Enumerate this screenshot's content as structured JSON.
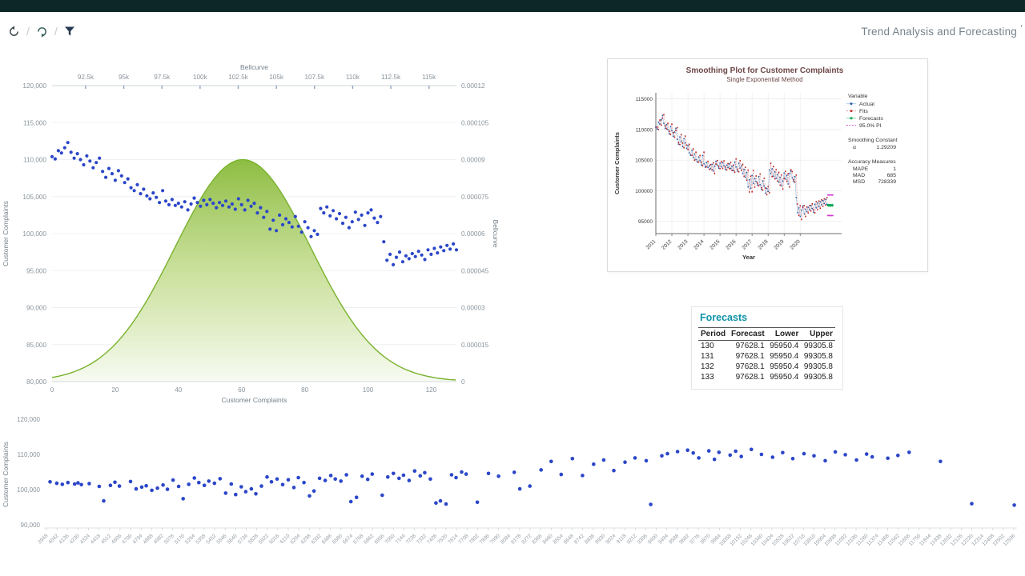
{
  "colors": {
    "topbar": "#0d2628",
    "scatter_point": "#2b46c8",
    "bellcurve_stroke": "#79b22e",
    "forecasts_title": "#0d93a6",
    "smoothing_title": "#6e4747",
    "actual_line": "#a6c8e8",
    "actual_marker": "#2e60a8",
    "fits_line": "#d98c8c",
    "fits_marker": "#bf1f1f",
    "forecast_marker": "#00a651",
    "pi_marker": "#cf3ccf"
  },
  "toolbar": {
    "separator": "/",
    "title": "Trend Analysis and Forecasting",
    "corner_mark": "’",
    "icons": [
      "undo-icon",
      "redo-icon",
      "filter-icon"
    ]
  },
  "forecasts_table": {
    "title": "Forecasts",
    "columns": [
      "Period",
      "Forecast",
      "Lower",
      "Upper"
    ],
    "rows": [
      [
        "130",
        "97628.1",
        "95950.4",
        "99305.8"
      ],
      [
        "131",
        "97628.1",
        "95950.4",
        "99305.8"
      ],
      [
        "132",
        "97628.1",
        "95950.4",
        "99305.8"
      ],
      [
        "133",
        "97628.1",
        "95950.4",
        "99305.8"
      ]
    ]
  },
  "chart_data": [
    {
      "id": "bellcurve-scatter",
      "type": "scatter",
      "title": "",
      "x_axis": {
        "label": "Customer Complaints",
        "values": [
          0,
          20,
          40,
          60,
          80,
          100,
          120
        ],
        "labels": [
          "0",
          "20",
          "40",
          "60",
          "80",
          "100",
          "120"
        ],
        "range": [
          0,
          128
        ]
      },
      "y_axis": {
        "label": "Customer Complaints",
        "values": [
          80000,
          85000,
          90000,
          95000,
          100000,
          105000,
          110000,
          115000,
          120000
        ],
        "labels": [
          "80,000",
          "85,000",
          "90,000",
          "95,000",
          "100,000",
          "105,000",
          "110,000",
          "115,000",
          "120,000"
        ],
        "range": [
          80000,
          120000
        ]
      },
      "top_axis": {
        "label": "Bellcurve",
        "values": [
          92500,
          95000,
          97500,
          100000,
          102500,
          105000,
          107500,
          110000,
          112500,
          115000
        ],
        "labels": [
          "92.5k",
          "95k",
          "97.5k",
          "100k",
          "102.5k",
          "105k",
          "107.5k",
          "110k",
          "112.5k",
          "115k"
        ],
        "range": [
          90300,
          116800
        ]
      },
      "right_axis": {
        "label": "Bellcurve",
        "values": [
          0,
          1.5e-05,
          3e-05,
          4.5e-05,
          6e-05,
          7.5e-05,
          9e-05,
          0.000105,
          0.00012
        ],
        "labels": [
          "0",
          "0.000015",
          "0.00003",
          "0.000045",
          "0.00006",
          "0.000075",
          "0.00009",
          "0.000105",
          "0.00012"
        ],
        "range": [
          0,
          0.00012
        ]
      },
      "bellcurve": {
        "mean": 102800,
        "sd": 4430,
        "peak": 9e-05
      },
      "point_color": "#2b46c8",
      "curve_color": "#79b22e",
      "grid": "horizontal",
      "values": [
        110400,
        110100,
        111200,
        110900,
        111600,
        112300,
        111000,
        110200,
        110800,
        110000,
        109300,
        110500,
        109800,
        108900,
        109600,
        110200,
        108400,
        107600,
        108800,
        108100,
        107200,
        108500,
        107800,
        106900,
        107400,
        106200,
        105800,
        106600,
        105400,
        106000,
        105100,
        104700,
        105500,
        104900,
        104200,
        105800,
        104400,
        103900,
        104600,
        103800,
        104100,
        103600,
        104300,
        103200,
        104000,
        104800,
        104200,
        103700,
        104500,
        103900,
        104600,
        104100,
        103500,
        104200,
        103800,
        104400,
        103600,
        104000,
        103300,
        104700,
        103900,
        103200,
        104500,
        103700,
        104100,
        102800,
        103500,
        102200,
        103000,
        100600,
        101800,
        100400,
        102500,
        101200,
        102000,
        101500,
        100900,
        102300,
        101000,
        100200,
        101600,
        100800,
        99600,
        100400,
        99900,
        103400,
        102800,
        103600,
        102400,
        103100,
        102000,
        102700,
        101400,
        102200,
        100800,
        101600,
        102900,
        101900,
        102500,
        101100,
        102800,
        103200,
        102100,
        101500,
        102300,
        98900,
        96400,
        97200,
        95800,
        96800,
        97500,
        96200,
        97000,
        96600,
        97300,
        96900,
        97600,
        97100,
        96500,
        97800,
        97200,
        98000,
        97400,
        98200,
        97700,
        98400,
        97900,
        98600,
        97800
      ]
    },
    {
      "id": "smoothing-plot",
      "type": "line",
      "title": "Smoothing Plot for Customer Complaints",
      "subtitle": "Single Exponential Method",
      "x_axis": {
        "label": "Year",
        "ticks": [
          "2011",
          "2012",
          "2013",
          "2014",
          "2015",
          "2016",
          "2017",
          "2018",
          "2019",
          "2020"
        ]
      },
      "y_axis": {
        "label": "Customer Complaints",
        "values": [
          95000,
          100000,
          105000,
          110000,
          115000
        ],
        "labels": [
          "95000",
          "100000",
          "105000",
          "110000",
          "115000"
        ],
        "range": [
          93000,
          116000
        ]
      },
      "actual_same_as_chart": "bellcurve-scatter",
      "legend": {
        "header": "Variable",
        "items": [
          {
            "label": "Actual",
            "line": "#a6c8e8",
            "marker": "#2e60a8",
            "shape": "diamond",
            "dash": ""
          },
          {
            "label": "Fits",
            "line": "#d98c8c",
            "marker": "#bf1f1f",
            "shape": "square",
            "dash": "2 1.5"
          },
          {
            "label": "Forecasts",
            "line": "#7cc9a2",
            "marker": "#00a651",
            "shape": "diamond",
            "dash": ""
          },
          {
            "label": "95.0% PI",
            "line": "#cf3ccf",
            "marker": "#cf3ccf",
            "shape": "dash",
            "dash": "2 1.5"
          }
        ]
      },
      "smoothing_constant": {
        "heading": "Smoothing Constant",
        "rows": [
          [
            "α",
            "1.29209"
          ]
        ]
      },
      "accuracy_measures": {
        "heading": "Accuracy Measures",
        "rows": [
          [
            "MAPE",
            "1"
          ],
          [
            "MAD",
            "685"
          ],
          [
            "MSD",
            "728339"
          ]
        ]
      },
      "forecast": {
        "periods": [
          130,
          131,
          132,
          133
        ],
        "value": 97628.1,
        "lower": 95950.4,
        "upper": 99305.8,
        "alpha": 1.29209
      }
    },
    {
      "id": "complaints-by-measure",
      "type": "scatter",
      "y_axis": {
        "label": "Customer Complaints",
        "values": [
          90000,
          100000,
          110000,
          120000
        ],
        "labels": [
          "90,000",
          "100,000",
          "110,000",
          "120,000"
        ],
        "range": [
          90000,
          120000
        ]
      },
      "x_ticks": [
        3948,
        4042,
        4136,
        4230,
        4324,
        4418,
        4512,
        4606,
        4700,
        4794,
        4888,
        4982,
        5076,
        5170,
        5264,
        5358,
        5452,
        5546,
        5640,
        5734,
        5828,
        5922,
        6016,
        6110,
        6204,
        6298,
        6392,
        6486,
        6580,
        6674,
        6768,
        6862,
        6956,
        7050,
        7144,
        7238,
        7332,
        7426,
        7520,
        7614,
        7708,
        7802,
        7896,
        7990,
        8084,
        8178,
        8272,
        8366,
        8460,
        8554,
        8648,
        8742,
        8836,
        8930,
        9024,
        9118,
        9212,
        9306,
        9400,
        9494,
        9588,
        9682,
        9776,
        9870,
        9964,
        10058,
        10152,
        10246,
        10340,
        10434,
        10528,
        10622,
        10716,
        10810,
        10904,
        10998,
        11092,
        11186,
        11280,
        11374,
        11468,
        11562,
        11656,
        11750,
        11844,
        11938,
        12032,
        12126,
        12220,
        12314,
        12408,
        12502,
        12596
      ],
      "point_color": "#2b46c8",
      "points": [
        [
          3980,
          102200
        ],
        [
          4040,
          101800
        ],
        [
          4090,
          101500
        ],
        [
          4140,
          102000
        ],
        [
          4200,
          101600
        ],
        [
          4230,
          101900
        ],
        [
          4260,
          101400
        ],
        [
          4330,
          101700
        ],
        [
          4420,
          100900
        ],
        [
          4460,
          96800
        ],
        [
          4520,
          101200
        ],
        [
          4560,
          102100
        ],
        [
          4600,
          101000
        ],
        [
          4700,
          102300
        ],
        [
          4750,
          100200
        ],
        [
          4800,
          100700
        ],
        [
          4840,
          101100
        ],
        [
          4890,
          99800
        ],
        [
          4940,
          100400
        ],
        [
          4990,
          101300
        ],
        [
          5030,
          100100
        ],
        [
          5080,
          102700
        ],
        [
          5130,
          100900
        ],
        [
          5170,
          97400
        ],
        [
          5220,
          101500
        ],
        [
          5270,
          103300
        ],
        [
          5310,
          102000
        ],
        [
          5360,
          101200
        ],
        [
          5400,
          102400
        ],
        [
          5450,
          101800
        ],
        [
          5500,
          103100
        ],
        [
          5550,
          99000
        ],
        [
          5600,
          101600
        ],
        [
          5640,
          98600
        ],
        [
          5690,
          100800
        ],
        [
          5730,
          99400
        ],
        [
          5780,
          100200
        ],
        [
          5820,
          98800
        ],
        [
          5870,
          101000
        ],
        [
          5920,
          103600
        ],
        [
          5960,
          102200
        ],
        [
          6010,
          103000
        ],
        [
          6060,
          101400
        ],
        [
          6110,
          102800
        ],
        [
          6160,
          100600
        ],
        [
          6200,
          103400
        ],
        [
          6250,
          102000
        ],
        [
          6300,
          98200
        ],
        [
          6340,
          99600
        ],
        [
          6390,
          103200
        ],
        [
          6440,
          102600
        ],
        [
          6490,
          104000
        ],
        [
          6530,
          103000
        ],
        [
          6580,
          102400
        ],
        [
          6630,
          104200
        ],
        [
          6670,
          96600
        ],
        [
          6720,
          97800
        ],
        [
          6770,
          103800
        ],
        [
          6820,
          102900
        ],
        [
          6860,
          104400
        ],
        [
          6950,
          98400
        ],
        [
          7000,
          103600
        ],
        [
          7050,
          104600
        ],
        [
          7100,
          103200
        ],
        [
          7140,
          104100
        ],
        [
          7190,
          102600
        ],
        [
          7240,
          105300
        ],
        [
          7290,
          103900
        ],
        [
          7330,
          104800
        ],
        [
          7380,
          103000
        ],
        [
          7430,
          96200
        ],
        [
          7470,
          96800
        ],
        [
          7520,
          95900
        ],
        [
          7570,
          104200
        ],
        [
          7610,
          103400
        ],
        [
          7660,
          105000
        ],
        [
          7700,
          104400
        ],
        [
          7800,
          96400
        ],
        [
          7900,
          104600
        ],
        [
          7990,
          103800
        ],
        [
          8130,
          104900
        ],
        [
          8180,
          100200
        ],
        [
          8270,
          101000
        ],
        [
          8370,
          105600
        ],
        [
          8460,
          108000
        ],
        [
          8550,
          104300
        ],
        [
          8650,
          108800
        ],
        [
          8740,
          104000
        ],
        [
          8840,
          107200
        ],
        [
          8930,
          108400
        ],
        [
          9020,
          105400
        ],
        [
          9120,
          107800
        ],
        [
          9210,
          109000
        ],
        [
          9310,
          108200
        ],
        [
          9350,
          95800
        ],
        [
          9450,
          109600
        ],
        [
          9500,
          110200
        ],
        [
          9590,
          110800
        ],
        [
          9680,
          111200
        ],
        [
          9730,
          110400
        ],
        [
          9780,
          109000
        ],
        [
          9870,
          111000
        ],
        [
          9920,
          108600
        ],
        [
          9960,
          110600
        ],
        [
          10060,
          109800
        ],
        [
          10110,
          110900
        ],
        [
          10160,
          109400
        ],
        [
          10250,
          111400
        ],
        [
          10340,
          110000
        ],
        [
          10440,
          109200
        ],
        [
          10530,
          110500
        ],
        [
          10620,
          108800
        ],
        [
          10720,
          110200
        ],
        [
          10810,
          109600
        ],
        [
          10910,
          108200
        ],
        [
          11000,
          110700
        ],
        [
          11090,
          109900
        ],
        [
          11190,
          108400
        ],
        [
          11280,
          110100
        ],
        [
          11330,
          109300
        ],
        [
          11470,
          108900
        ],
        [
          11560,
          109700
        ],
        [
          11660,
          110600
        ],
        [
          11940,
          108000
        ],
        [
          12220,
          96000
        ],
        [
          12600,
          95600
        ]
      ]
    }
  ]
}
